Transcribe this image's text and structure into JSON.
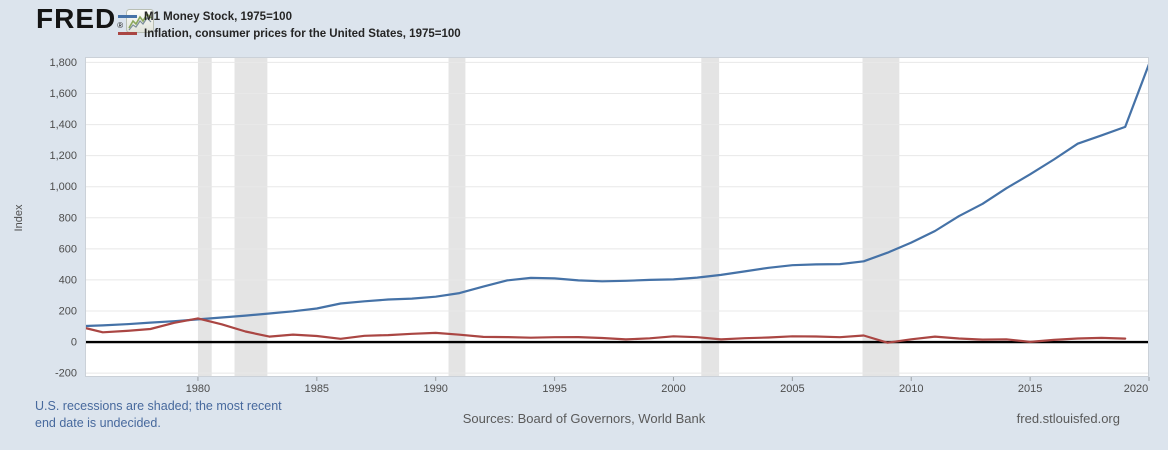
{
  "header": {
    "logo_text": "FRED",
    "registered_mark": "®",
    "logo_icon": "sparkline-chart-icon",
    "legend": [
      {
        "label": "M1 Money Stock, 1975=100",
        "color": "#4572a7"
      },
      {
        "label": "Inflation, consumer prices for the United States, 1975=100",
        "color": "#aa4643"
      }
    ]
  },
  "chart_data": {
    "type": "line",
    "title": "",
    "xlabel": "",
    "ylabel": "Index",
    "legend_position": "top-left-header",
    "grid": "horizontal",
    "zero_line": true,
    "xlim": [
      1975.25,
      2020.0
    ],
    "ylim": [
      -225,
      1835
    ],
    "x_ticks": [
      1980,
      1985,
      1990,
      1995,
      2000,
      2005,
      2010,
      2015,
      2020
    ],
    "x_tick_labels": [
      "1980",
      "1985",
      "1990",
      "1995",
      "2000",
      "2005",
      "2010",
      "2015",
      "2020"
    ],
    "y_ticks": [
      -200,
      0,
      200,
      400,
      600,
      800,
      1000,
      1200,
      1400,
      1600,
      1800
    ],
    "y_tick_labels": [
      "-200",
      "0",
      "200",
      "400",
      "600",
      "800",
      "1,000",
      "1,200",
      "1,400",
      "1,600",
      "1,800"
    ],
    "recession_bands_x": [
      [
        1980.0,
        1980.58
      ],
      [
        1981.54,
        1982.92
      ],
      [
        1990.54,
        1991.25
      ],
      [
        2001.17,
        2001.92
      ],
      [
        2007.95,
        2009.5
      ]
    ],
    "series": [
      {
        "name": "M1 Money Stock, 1975=100",
        "color": "#4572a7",
        "x": [
          1975,
          1976,
          1977,
          1978,
          1979,
          1980,
          1981,
          1982,
          1983,
          1984,
          1985,
          1986,
          1987,
          1988,
          1989,
          1990,
          1991,
          1992,
          1993,
          1994,
          1995,
          1996,
          1997,
          1998,
          1999,
          2000,
          2001,
          2002,
          2003,
          2004,
          2005,
          2006,
          2007,
          2008,
          2009,
          2010,
          2011,
          2012,
          2013,
          2014,
          2015,
          2016,
          2017,
          2018,
          2019,
          2020
        ],
        "values": [
          102,
          107,
          115,
          125,
          134,
          146,
          158,
          170,
          184,
          198,
          216,
          248,
          262,
          274,
          280,
          292,
          315,
          357,
          397,
          413,
          410,
          397,
          391,
          394,
          400,
          403,
          415,
          432,
          455,
          478,
          495,
          500,
          502,
          520,
          575,
          640,
          715,
          810,
          890,
          990,
          1080,
          1175,
          1277,
          1330,
          1385,
          1790
        ]
      },
      {
        "name": "Inflation, consumer prices for the United States, 1975=100",
        "color": "#aa4643",
        "x": [
          1975,
          1976,
          1977,
          1978,
          1979,
          1980,
          1981,
          1982,
          1983,
          1984,
          1985,
          1986,
          1987,
          1988,
          1989,
          1990,
          1991,
          1992,
          1993,
          1994,
          1995,
          1996,
          1997,
          1998,
          1999,
          2000,
          2001,
          2002,
          2003,
          2004,
          2005,
          2006,
          2007,
          2008,
          2009,
          2010,
          2011,
          2012,
          2013,
          2014,
          2015,
          2016,
          2017,
          2018,
          2019
        ],
        "values": [
          100,
          63,
          72,
          84,
          124,
          152,
          114,
          68,
          35,
          48,
          39,
          21,
          40,
          45,
          53,
          59,
          47,
          33,
          32,
          28,
          31,
          32,
          26,
          17,
          24,
          37,
          31,
          17,
          25,
          29,
          37,
          36,
          31,
          42,
          -4,
          18,
          35,
          23,
          16,
          18,
          1,
          14,
          23,
          27,
          22
        ]
      }
    ]
  },
  "footer": {
    "recession_note_lines": [
      "U.S. recessions are shaded; the most recent",
      "end date is undecided."
    ],
    "sources": "Sources: Board of Governors, World Bank",
    "site_link": "fred.stlouisfed.org"
  },
  "colors": {
    "page_bg": "#dce4ed",
    "plot_bg": "#ffffff",
    "recession_shade": "#e4e4e4",
    "gridline": "#e8e8e8",
    "plot_border": "#cbd1d8",
    "zero_line": "#000000",
    "tick_mark": "#9aa0a6",
    "tick_label": "#4d4d4d",
    "axis_title": "#4d4d4d"
  }
}
